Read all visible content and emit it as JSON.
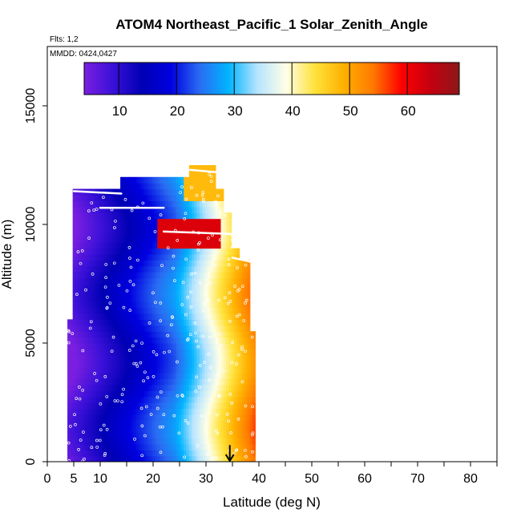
{
  "chart_data": {
    "type": "heatmap",
    "title": "ATOM4 Northeast_Pacific_1 Solar_Zenith_Angle",
    "flights_note": "Flts: 1,2",
    "date_note": "MMDD: 0424,0427",
    "xlabel": "Latitude (deg N)",
    "ylabel": "Altitude (m)",
    "xlim": [
      0,
      85
    ],
    "ylim": [
      0,
      17500
    ],
    "x_ticks": [
      0,
      5,
      10,
      20,
      30,
      40,
      50,
      60,
      70,
      80
    ],
    "x_minor_ticks": [
      15,
      25,
      35,
      45,
      55,
      65,
      75,
      85
    ],
    "y_ticks": [
      0,
      5000,
      10000,
      15000
    ],
    "colorbar": {
      "min": 4,
      "max": 69,
      "ticks": [
        10,
        20,
        30,
        40,
        50,
        60
      ],
      "colors": [
        "#7a1fe0",
        "#3a10d8",
        "#0000b4",
        "#0000e0",
        "#2a6cf2",
        "#00b4ff",
        "#b6e4ff",
        "#ffffe6",
        "#ffe23a",
        "#ffb000",
        "#ff7a00",
        "#ff0000",
        "#c40010",
        "#8c1818"
      ]
    },
    "marker": {
      "latitude": 34.5,
      "altitude_top": 700,
      "altitude_bottom": 0
    },
    "grid": false,
    "legend": "colorbar-top-inside"
  }
}
